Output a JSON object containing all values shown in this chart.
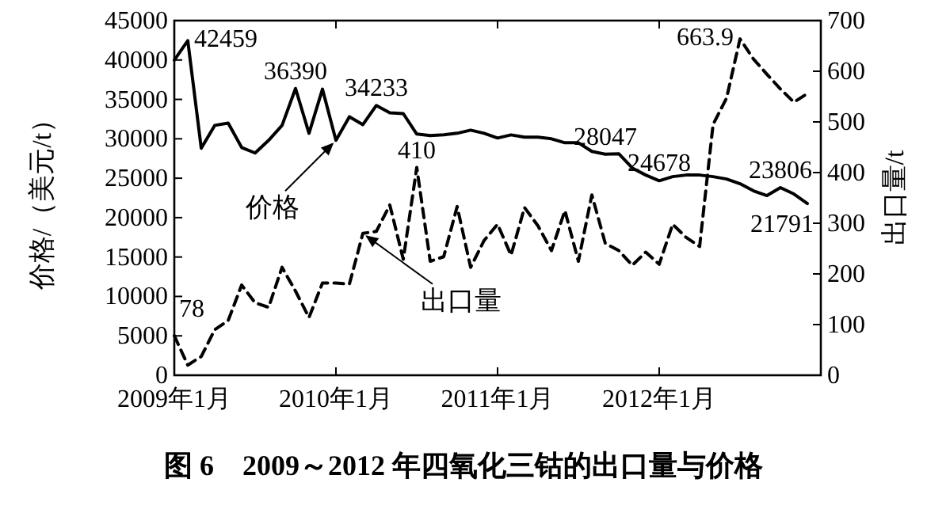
{
  "chart_data": {
    "type": "line",
    "x": [
      "2009-01",
      "2009-02",
      "2009-03",
      "2009-04",
      "2009-05",
      "2009-06",
      "2009-07",
      "2009-08",
      "2009-09",
      "2009-10",
      "2009-11",
      "2009-12",
      "2010-01",
      "2010-02",
      "2010-03",
      "2010-04",
      "2010-05",
      "2010-06",
      "2010-07",
      "2010-08",
      "2010-09",
      "2010-10",
      "2010-11",
      "2010-12",
      "2011-01",
      "2011-02",
      "2011-03",
      "2011-04",
      "2011-05",
      "2011-06",
      "2011-07",
      "2011-08",
      "2011-09",
      "2011-10",
      "2011-11",
      "2011-12",
      "2012-01",
      "2012-02",
      "2012-03",
      "2012-04",
      "2012-05",
      "2012-06",
      "2012-07",
      "2012-08",
      "2012-09",
      "2012-10",
      "2012-11",
      "2012-12"
    ],
    "xlim": [
      "2009-01",
      "2013-01"
    ],
    "xticks": [
      {
        "value": "2009-01",
        "label": "2009年1月"
      },
      {
        "value": "2010-01",
        "label": "2010年1月"
      },
      {
        "value": "2011-01",
        "label": "2011年1月"
      },
      {
        "value": "2012-01",
        "label": "2012年1月"
      }
    ],
    "ylim": [
      0,
      45000
    ],
    "yticks": [
      0,
      5000,
      10000,
      15000,
      20000,
      25000,
      30000,
      35000,
      40000,
      45000
    ],
    "y2lim": [
      0,
      700
    ],
    "y2ticks": [
      0,
      100,
      200,
      300,
      400,
      500,
      600,
      700
    ],
    "ylabel": "价格/（美元/t）",
    "y2label": "出口量/t",
    "annotations": [
      "图 6　2009～2012 年四氧化三钴的出口量与价格",
      {
        "text": "价格",
        "x": "2010-01",
        "y": 29800
      },
      {
        "text": "出口量",
        "x": "2010-03",
        "y": 18000
      }
    ],
    "series": [
      {
        "color": "#000000",
        "line_style": "solid",
        "values": [
          40000,
          42459,
          28800,
          31700,
          32000,
          28900,
          28200,
          29800,
          31700,
          36390,
          30700,
          36300,
          29800,
          32800,
          31800,
          34233,
          33300,
          33200,
          30600,
          30400,
          30500,
          30700,
          31100,
          30700,
          30100,
          30500,
          30200,
          30200,
          30000,
          29500,
          29500,
          28400,
          28047,
          28100,
          26300,
          25400,
          24678,
          25200,
          25400,
          25400,
          25200,
          24900,
          24300,
          23400,
          22800,
          23806,
          23000,
          21791
        ],
        "value_labels": [
          null,
          "42459",
          null,
          null,
          null,
          null,
          null,
          null,
          null,
          "36390",
          null,
          null,
          null,
          null,
          null,
          "34233",
          null,
          null,
          null,
          null,
          null,
          null,
          null,
          null,
          null,
          null,
          null,
          null,
          null,
          null,
          null,
          null,
          "28047",
          null,
          null,
          null,
          "24678",
          null,
          null,
          null,
          null,
          null,
          null,
          null,
          null,
          "23806",
          null,
          "21791"
        ]
      },
      {
        "color": "#000000",
        "line_style": "dashed",
        "axis": "y2",
        "values": [
          78,
          20,
          37,
          90,
          108,
          178,
          143,
          134,
          213,
          166,
          114,
          182,
          182,
          180,
          280,
          284,
          336,
          229,
          410,
          225,
          234,
          333,
          213,
          266,
          298,
          237,
          331,
          295,
          246,
          325,
          225,
          356,
          260,
          246,
          217,
          243,
          219,
          298,
          272,
          254,
          495,
          547,
          663.9,
          624,
          594,
          565,
          539,
          556
        ],
        "value_labels": [
          "78",
          null,
          null,
          null,
          null,
          null,
          null,
          null,
          null,
          null,
          null,
          null,
          null,
          null,
          null,
          null,
          null,
          null,
          "410",
          null,
          null,
          null,
          null,
          null,
          null,
          null,
          null,
          null,
          null,
          null,
          null,
          null,
          null,
          null,
          null,
          null,
          null,
          null,
          null,
          null,
          null,
          null,
          "663.9",
          null,
          null,
          null,
          null,
          null
        ]
      }
    ]
  }
}
